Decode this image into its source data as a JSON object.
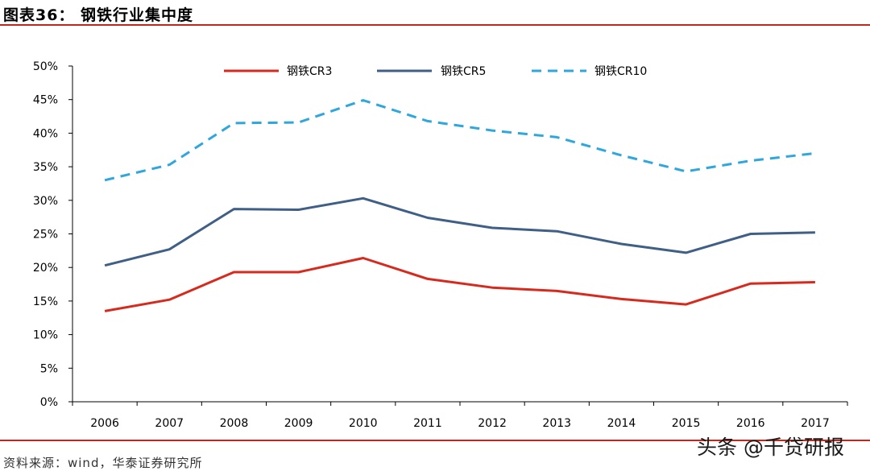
{
  "header": {
    "title": "图表36：   钢铁行业集中度"
  },
  "footer": {
    "source": "资料来源：wind，华泰证券研究所",
    "watermark": "头条 @千贷研报"
  },
  "chart_data": {
    "type": "line",
    "title": "钢铁行业集中度",
    "xlabel": "",
    "ylabel": "",
    "ylim": [
      0,
      50
    ],
    "y_ticks": [
      "0%",
      "5%",
      "10%",
      "15%",
      "20%",
      "25%",
      "30%",
      "35%",
      "40%",
      "45%",
      "50%"
    ],
    "y_tick_values": [
      0,
      5,
      10,
      15,
      20,
      25,
      30,
      35,
      40,
      45,
      50
    ],
    "categories": [
      "2006",
      "2007",
      "2008",
      "2009",
      "2010",
      "2011",
      "2012",
      "2013",
      "2014",
      "2015",
      "2016",
      "2017"
    ],
    "legend_position": "top",
    "grid": false,
    "series": [
      {
        "name": "钢铁CR3",
        "color": "#d8291d",
        "dash": "solid",
        "values": [
          13.5,
          15.2,
          19.3,
          19.3,
          21.4,
          18.3,
          17.0,
          16.5,
          15.3,
          14.5,
          17.6,
          17.8
        ]
      },
      {
        "name": "钢铁CR5",
        "color": "#3f5f87",
        "dash": "solid",
        "values": [
          20.3,
          22.7,
          28.7,
          28.6,
          30.3,
          27.4,
          25.9,
          25.4,
          23.5,
          22.2,
          25.0,
          25.2
        ]
      },
      {
        "name": "钢铁CR10",
        "color": "#2fa6dc",
        "dash": "dashed",
        "values": [
          33.0,
          35.3,
          41.5,
          41.6,
          44.9,
          41.8,
          40.4,
          39.4,
          36.7,
          34.3,
          35.9,
          37.0
        ]
      }
    ]
  }
}
